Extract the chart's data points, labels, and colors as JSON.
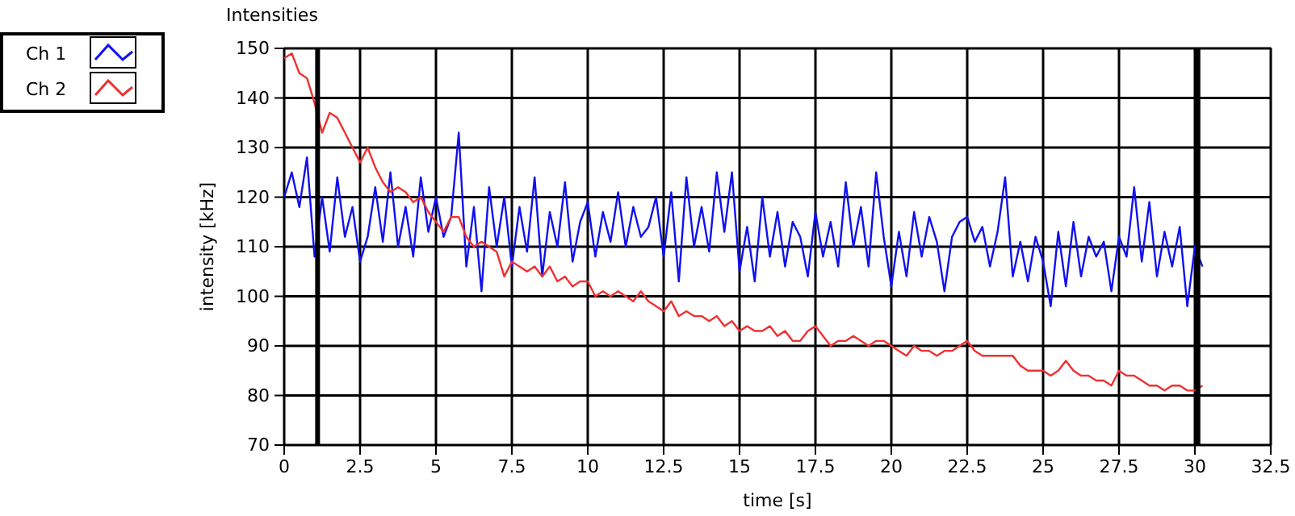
{
  "chart_data": {
    "type": "line",
    "title": "Intensities",
    "xlabel": "time [s]",
    "ylabel": "intensity [kHz]",
    "x": [
      0,
      0.25,
      0.5,
      0.75,
      1,
      1.25,
      1.5,
      1.75,
      2,
      2.25,
      2.5,
      2.75,
      3,
      3.25,
      3.5,
      3.75,
      4,
      4.25,
      4.5,
      4.75,
      5,
      5.25,
      5.5,
      5.75,
      6,
      6.25,
      6.5,
      6.75,
      7,
      7.25,
      7.5,
      7.75,
      8,
      8.25,
      8.5,
      8.75,
      9,
      9.25,
      9.5,
      9.75,
      10,
      10.25,
      10.5,
      10.75,
      11,
      11.25,
      11.5,
      11.75,
      12,
      12.25,
      12.5,
      12.75,
      13,
      13.25,
      13.5,
      13.75,
      14,
      14.25,
      14.5,
      14.75,
      15,
      15.25,
      15.5,
      15.75,
      16,
      16.25,
      16.5,
      16.75,
      17,
      17.25,
      17.5,
      17.75,
      18,
      18.25,
      18.5,
      18.75,
      19,
      19.25,
      19.5,
      19.75,
      20,
      20.25,
      20.5,
      20.75,
      21,
      21.25,
      21.5,
      21.75,
      22,
      22.25,
      22.5,
      22.75,
      23,
      23.25,
      23.5,
      23.75,
      24,
      24.25,
      24.5,
      24.75,
      25,
      25.25,
      25.5,
      25.75,
      26,
      26.25,
      26.5,
      26.75,
      27,
      27.25,
      27.5,
      27.75,
      28,
      28.25,
      28.5,
      28.75,
      29,
      29.25,
      29.5,
      29.75,
      30,
      30.25
    ],
    "series": [
      {
        "name": "Ch 1",
        "color": "#1010f0",
        "values": [
          120,
          125,
          118,
          128,
          108,
          120,
          109,
          124,
          112,
          118,
          107,
          112,
          122,
          111,
          125,
          110,
          118,
          108,
          124,
          113,
          120,
          112,
          116,
          133,
          106,
          118,
          101,
          122,
          110,
          120,
          106,
          118,
          109,
          124,
          104,
          117,
          110,
          123,
          107,
          115,
          119,
          108,
          117,
          111,
          121,
          110,
          118,
          112,
          114,
          120,
          108,
          121,
          103,
          124,
          110,
          118,
          109,
          125,
          113,
          125,
          105,
          114,
          103,
          120,
          108,
          117,
          106,
          115,
          112,
          104,
          117,
          108,
          115,
          106,
          123,
          110,
          118,
          106,
          125,
          112,
          102,
          113,
          104,
          117,
          108,
          116,
          111,
          101,
          112,
          115,
          116,
          111,
          114,
          106,
          113,
          124,
          104,
          111,
          103,
          112,
          107,
          98,
          113,
          102,
          115,
          104,
          112,
          108,
          111,
          101,
          112,
          108,
          122,
          107,
          119,
          104,
          113,
          106,
          114,
          98,
          110,
          106
        ]
      },
      {
        "name": "Ch 2",
        "color": "#f03030",
        "values": [
          148,
          149,
          145,
          144,
          139,
          133,
          137,
          136,
          133,
          130,
          127,
          130,
          126,
          123,
          121,
          122,
          121,
          119,
          120,
          117,
          115,
          113,
          116,
          116,
          112,
          110,
          111,
          110,
          109,
          104,
          107,
          106,
          105,
          106,
          104,
          106,
          103,
          104,
          102,
          103,
          103,
          100,
          101,
          100,
          101,
          100,
          99,
          101,
          99,
          98,
          97,
          99,
          96,
          97,
          96,
          96,
          95,
          96,
          94,
          95,
          93,
          94,
          93,
          93,
          94,
          92,
          93,
          91,
          91,
          93,
          94,
          92,
          90,
          91,
          91,
          92,
          91,
          90,
          91,
          91,
          90,
          89,
          88,
          90,
          89,
          89,
          88,
          89,
          89,
          90,
          91,
          89,
          88,
          88,
          88,
          88,
          88,
          86,
          85,
          85,
          85,
          84,
          85,
          87,
          85,
          84,
          84,
          83,
          83,
          82,
          85,
          84,
          84,
          83,
          82,
          82,
          81,
          82,
          82,
          81,
          81,
          82
        ]
      }
    ],
    "xlim": [
      0,
      32.5
    ],
    "ylim": [
      70,
      150
    ],
    "xticks": [
      0,
      2.5,
      5,
      7.5,
      10,
      12.5,
      15,
      17.5,
      20,
      22.5,
      25,
      27.5,
      30,
      32.5
    ],
    "yticks": [
      70,
      80,
      90,
      100,
      110,
      120,
      130,
      140,
      150
    ],
    "ref_lines": [
      {
        "axis": "x",
        "value": 1.1,
        "color": "#000000"
      },
      {
        "axis": "x",
        "value": 30.1,
        "color": "#000000"
      }
    ],
    "grid": true,
    "legend": "top left",
    "marker": "none",
    "line_style": "solid"
  }
}
